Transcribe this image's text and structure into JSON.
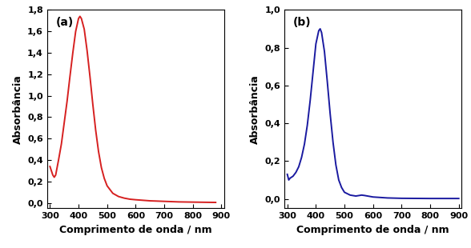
{
  "chart_data": [
    {
      "type": "line",
      "annotations": [
        "(a)"
      ],
      "x_label": "Comprimento de onda / nm",
      "y_label": "Absorbância",
      "color": "#d62020",
      "x": [
        300,
        305,
        310,
        315,
        320,
        330,
        340,
        350,
        360,
        370,
        380,
        390,
        400,
        405,
        410,
        420,
        430,
        440,
        450,
        460,
        470,
        480,
        490,
        500,
        520,
        540,
        560,
        580,
        600,
        650,
        700,
        750,
        800,
        850,
        880
      ],
      "values": [
        0.34,
        0.3,
        0.26,
        0.24,
        0.26,
        0.4,
        0.55,
        0.75,
        0.95,
        1.18,
        1.4,
        1.6,
        1.72,
        1.74,
        1.72,
        1.62,
        1.42,
        1.18,
        0.92,
        0.68,
        0.48,
        0.33,
        0.23,
        0.16,
        0.09,
        0.06,
        0.045,
        0.035,
        0.03,
        0.02,
        0.015,
        0.01,
        0.008,
        0.006,
        0.005
      ],
      "xlim": [
        290,
        910
      ],
      "xticks": [
        300,
        400,
        500,
        600,
        700,
        800,
        900
      ],
      "ylim": [
        -0.05,
        1.8
      ],
      "yticks": [
        {
          "value": 0.0,
          "label": "0,0"
        },
        {
          "value": 0.2,
          "label": "0,2"
        },
        {
          "value": 0.4,
          "label": "0,4"
        },
        {
          "value": 0.6,
          "label": "0,6"
        },
        {
          "value": 0.8,
          "label": "0,8"
        },
        {
          "value": 1.0,
          "label": "1,0"
        },
        {
          "value": 1.2,
          "label": "1,2"
        },
        {
          "value": 1.4,
          "label": "1,4"
        },
        {
          "value": 1.6,
          "label": "1,6"
        },
        {
          "value": 1.8,
          "label": "1,8"
        }
      ]
    },
    {
      "type": "line",
      "annotations": [
        "(b)"
      ],
      "x_label": "Comprimento de onda / nm",
      "y_label": "Absorbância",
      "color": "#1a1aa0",
      "x": [
        300,
        305,
        310,
        320,
        330,
        340,
        350,
        360,
        370,
        380,
        390,
        400,
        410,
        415,
        420,
        430,
        440,
        450,
        460,
        470,
        480,
        490,
        500,
        520,
        540,
        560,
        570,
        600,
        650,
        700,
        800,
        900
      ],
      "values": [
        0.13,
        0.1,
        0.11,
        0.12,
        0.14,
        0.17,
        0.22,
        0.29,
        0.39,
        0.52,
        0.67,
        0.82,
        0.89,
        0.9,
        0.88,
        0.78,
        0.62,
        0.45,
        0.3,
        0.18,
        0.1,
        0.06,
        0.035,
        0.02,
        0.015,
        0.02,
        0.018,
        0.01,
        0.005,
        0.003,
        0.002,
        0.002
      ],
      "xlim": [
        290,
        910
      ],
      "xticks": [
        300,
        400,
        500,
        600,
        700,
        800,
        900
      ],
      "ylim": [
        -0.05,
        1.0
      ],
      "yticks": [
        {
          "value": 0.0,
          "label": "0,0"
        },
        {
          "value": 0.2,
          "label": "0,2"
        },
        {
          "value": 0.4,
          "label": "0,4"
        },
        {
          "value": 0.6,
          "label": "0,6"
        },
        {
          "value": 0.8,
          "label": "0,8"
        },
        {
          "value": 1.0,
          "label": "1,0"
        }
      ]
    }
  ]
}
